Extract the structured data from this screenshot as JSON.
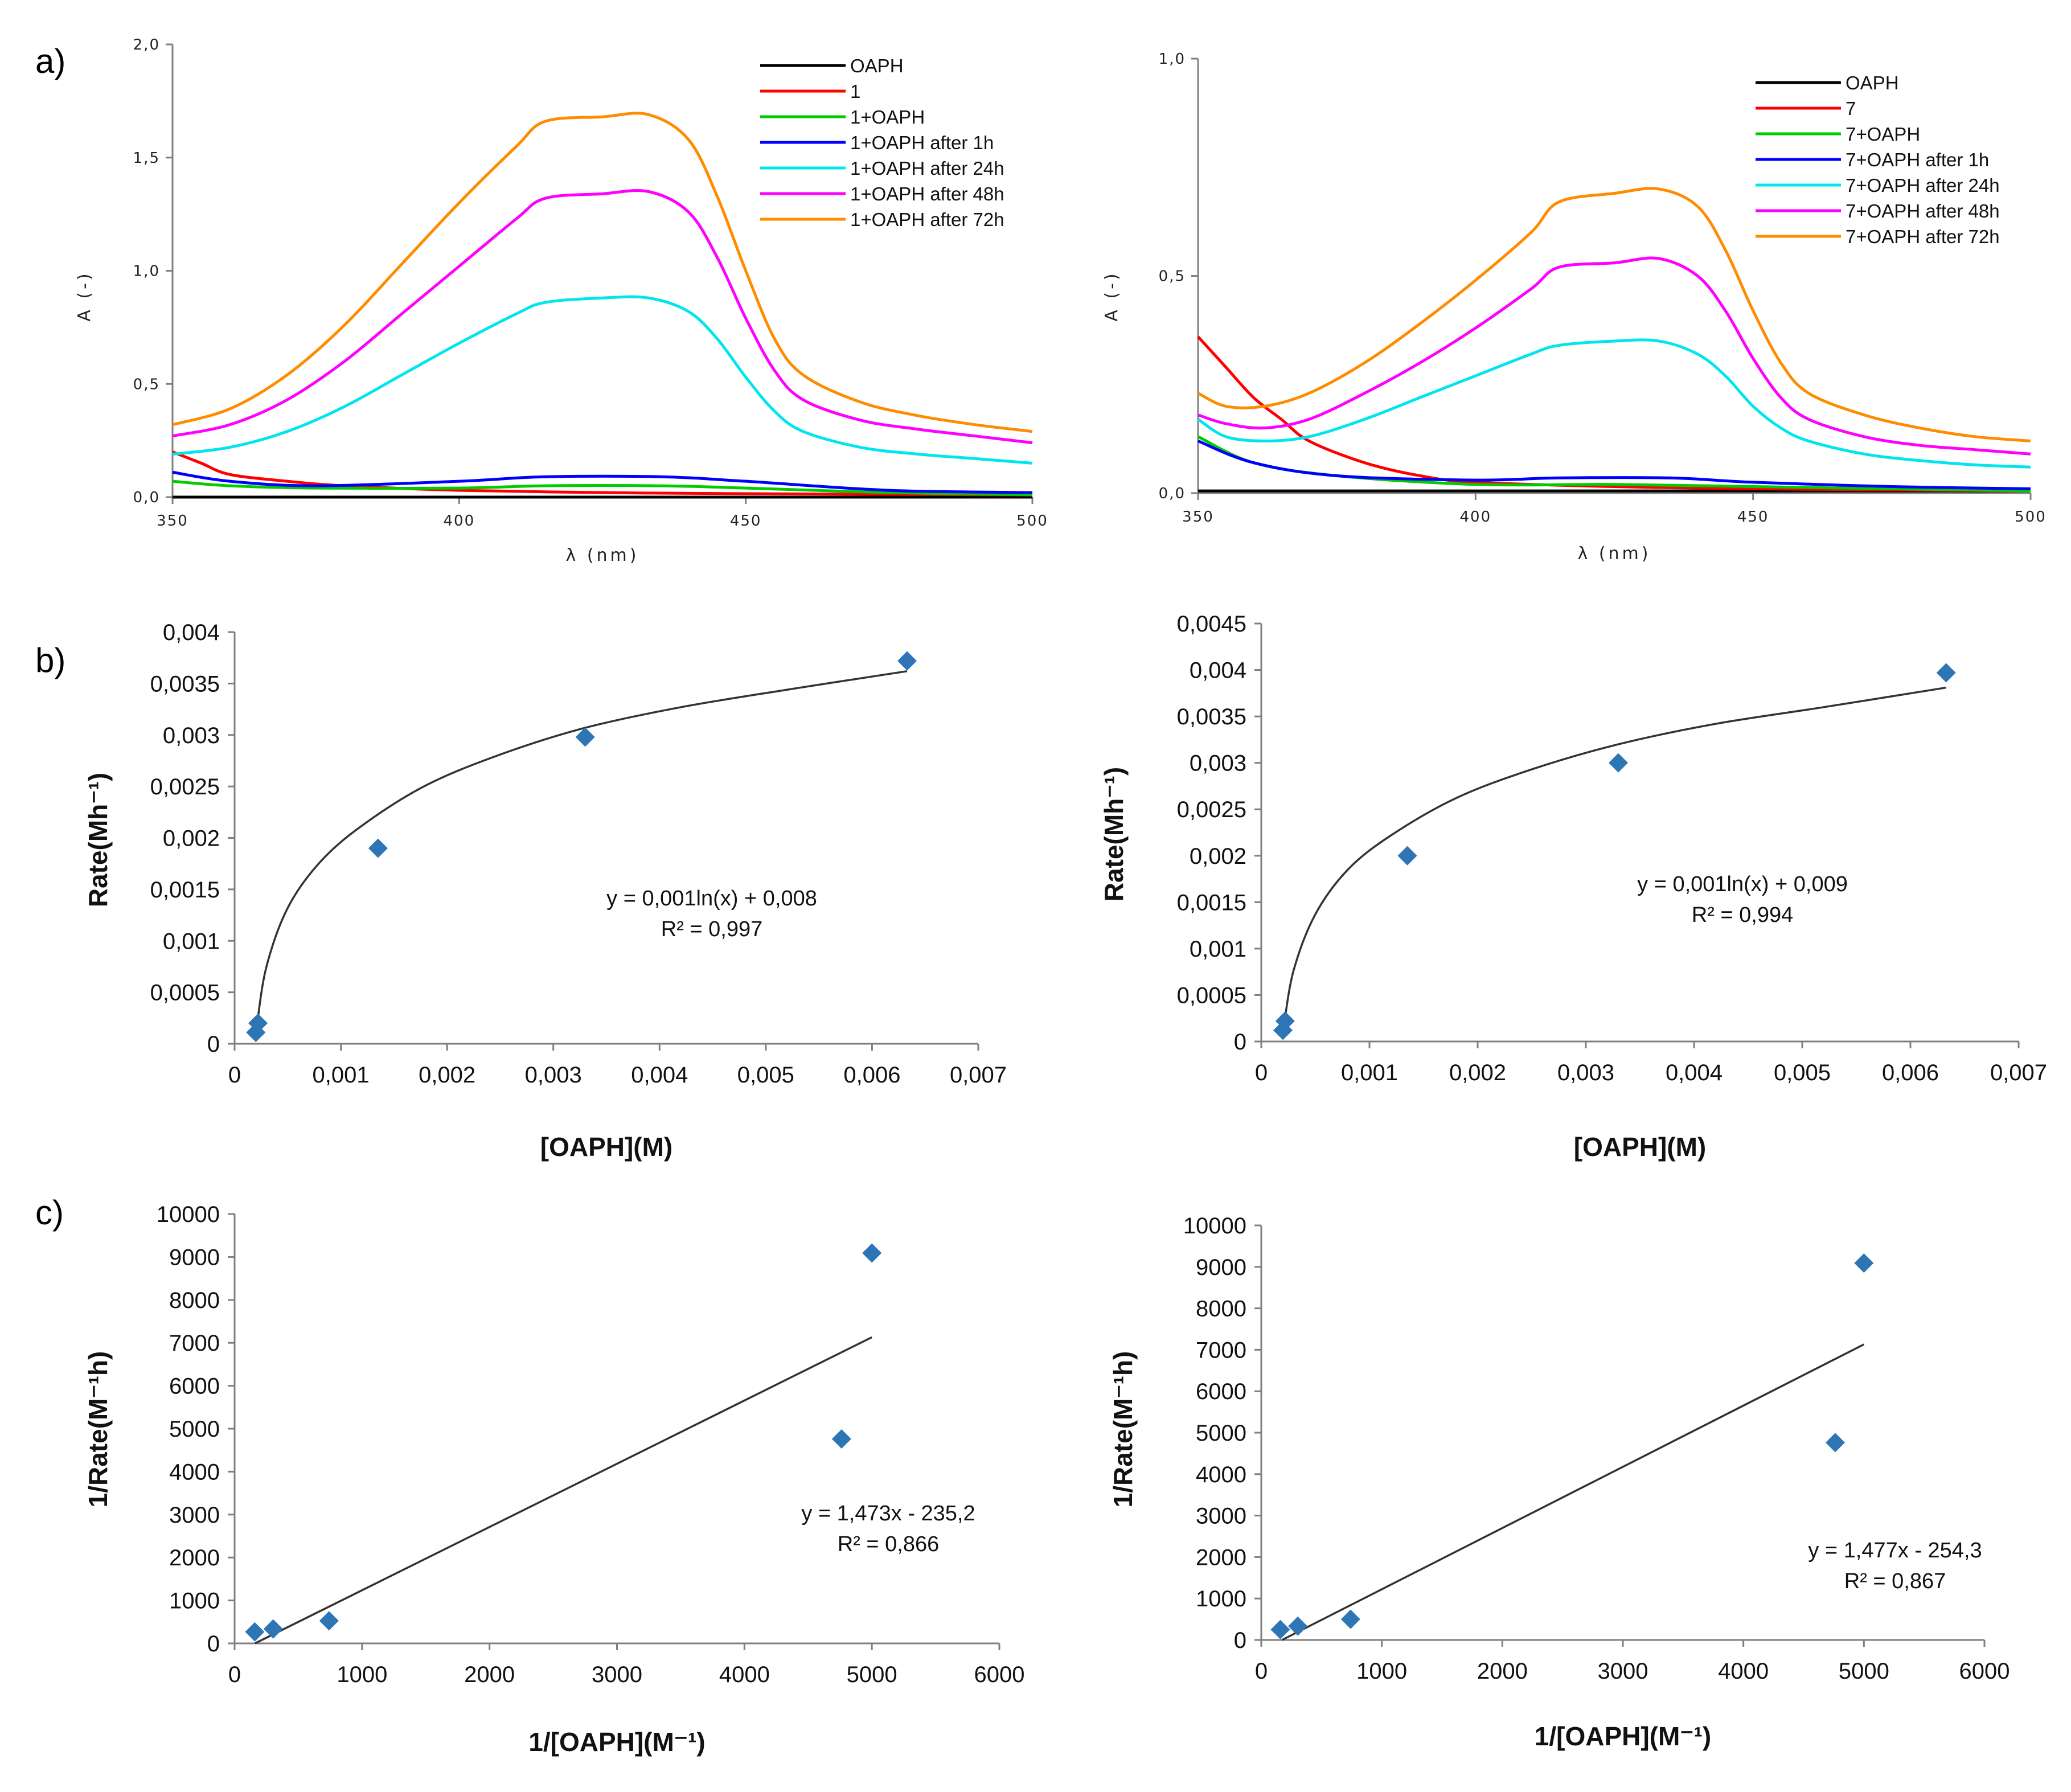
{
  "panel_labels": [
    "a)",
    "b)",
    "c)"
  ],
  "chart_data": [
    {
      "id": "a-left",
      "panel": "a)",
      "type": "line",
      "title": "",
      "xlabel": "λ (nm)",
      "ylabel": "A (-)",
      "xlim": [
        350,
        500
      ],
      "ylim": [
        0,
        2.0
      ],
      "xticks": [
        350,
        400,
        450,
        500
      ],
      "xtick_labels": [
        "350",
        "400",
        "450",
        "500"
      ],
      "yticks": [
        0,
        0.5,
        1.0,
        1.5,
        2.0
      ],
      "ytick_labels": [
        "0,0",
        "0,5",
        "1,0",
        "1,5",
        "2,0"
      ],
      "legend_position": "top-right",
      "series": [
        {
          "name": "OAPH",
          "color": "#000000",
          "x": [
            350,
            375,
            400,
            425,
            450,
            475,
            500
          ],
          "values": [
            0.0,
            0.0,
            0.0,
            0.0,
            0.0,
            0.0,
            0.0
          ]
        },
        {
          "name": "1",
          "color": "#ff0000",
          "x": [
            350,
            355,
            360,
            370,
            380,
            400,
            425,
            450,
            500
          ],
          "values": [
            0.2,
            0.15,
            0.1,
            0.07,
            0.05,
            0.03,
            0.02,
            0.015,
            0.01
          ]
        },
        {
          "name": "1+OAPH",
          "color": "#00cc00",
          "x": [
            350,
            360,
            375,
            400,
            415,
            435,
            450,
            475,
            500
          ],
          "values": [
            0.07,
            0.05,
            0.04,
            0.04,
            0.05,
            0.05,
            0.04,
            0.02,
            0.01
          ]
        },
        {
          "name": "1+OAPH after 1h",
          "color": "#0000ff",
          "x": [
            350,
            360,
            375,
            400,
            415,
            435,
            450,
            475,
            500
          ],
          "values": [
            0.11,
            0.07,
            0.05,
            0.07,
            0.09,
            0.09,
            0.07,
            0.03,
            0.02
          ]
        },
        {
          "name": "1+OAPH after 24h",
          "color": "#00e5ee",
          "x": [
            350,
            360,
            370,
            380,
            390,
            400,
            410,
            415,
            425,
            433,
            440,
            445,
            450,
            455,
            460,
            470,
            480,
            490,
            500
          ],
          "values": [
            0.19,
            0.22,
            0.29,
            0.4,
            0.54,
            0.68,
            0.81,
            0.86,
            0.88,
            0.88,
            0.82,
            0.7,
            0.53,
            0.38,
            0.29,
            0.22,
            0.19,
            0.17,
            0.15
          ]
        },
        {
          "name": "1+OAPH after 48h",
          "color": "#ff00ff",
          "x": [
            350,
            360,
            370,
            380,
            390,
            400,
            410,
            415,
            425,
            433,
            440,
            445,
            450,
            455,
            460,
            470,
            480,
            490,
            500
          ],
          "values": [
            0.27,
            0.32,
            0.43,
            0.6,
            0.81,
            1.02,
            1.23,
            1.32,
            1.34,
            1.35,
            1.26,
            1.06,
            0.79,
            0.56,
            0.43,
            0.34,
            0.3,
            0.27,
            0.24
          ]
        },
        {
          "name": "1+OAPH after 72h",
          "color": "#ff8c00",
          "x": [
            350,
            360,
            370,
            380,
            390,
            400,
            410,
            415,
            425,
            433,
            440,
            445,
            450,
            455,
            460,
            470,
            480,
            490,
            500
          ],
          "values": [
            0.32,
            0.39,
            0.54,
            0.76,
            1.03,
            1.3,
            1.55,
            1.66,
            1.68,
            1.69,
            1.58,
            1.33,
            1.0,
            0.7,
            0.54,
            0.42,
            0.36,
            0.32,
            0.29
          ]
        }
      ]
    },
    {
      "id": "a-right",
      "panel": "a)",
      "type": "line",
      "title": "",
      "xlabel": "λ (nm)",
      "ylabel": "A (-)",
      "xlim": [
        350,
        500
      ],
      "ylim": [
        0,
        1.0
      ],
      "xticks": [
        350,
        400,
        450,
        500
      ],
      "xtick_labels": [
        "350",
        "400",
        "450",
        "500"
      ],
      "yticks": [
        0,
        0.5,
        1.0
      ],
      "ytick_labels": [
        "0,0",
        "0,5",
        "1,0"
      ],
      "legend_position": "top-right",
      "series": [
        {
          "name": "OAPH",
          "color": "#000000",
          "x": [
            350,
            375,
            400,
            425,
            450,
            475,
            500
          ],
          "values": [
            0.005,
            0.005,
            0.005,
            0.005,
            0.005,
            0.005,
            0.005
          ]
        },
        {
          "name": "7",
          "color": "#ff0000",
          "x": [
            350,
            355,
            360,
            365,
            370,
            380,
            390,
            400,
            425,
            450,
            500
          ],
          "values": [
            0.36,
            0.29,
            0.22,
            0.17,
            0.12,
            0.07,
            0.04,
            0.025,
            0.015,
            0.01,
            0.005
          ]
        },
        {
          "name": "7+OAPH",
          "color": "#00cc00",
          "x": [
            350,
            360,
            375,
            400,
            425,
            450,
            475,
            500
          ],
          "values": [
            0.13,
            0.07,
            0.04,
            0.02,
            0.02,
            0.015,
            0.01,
            0.005
          ]
        },
        {
          "name": "7+OAPH after 1h",
          "color": "#0000ff",
          "x": [
            350,
            360,
            375,
            400,
            415,
            435,
            450,
            475,
            500
          ],
          "values": [
            0.12,
            0.07,
            0.04,
            0.03,
            0.035,
            0.035,
            0.025,
            0.015,
            0.01
          ]
        },
        {
          "name": "7+OAPH after 24h",
          "color": "#00e5ee",
          "x": [
            350,
            355,
            362,
            370,
            380,
            390,
            400,
            410,
            415,
            425,
            433,
            440,
            445,
            450,
            455,
            460,
            470,
            480,
            490,
            500
          ],
          "values": [
            0.17,
            0.13,
            0.12,
            0.13,
            0.17,
            0.22,
            0.27,
            0.32,
            0.34,
            0.35,
            0.35,
            0.32,
            0.27,
            0.2,
            0.15,
            0.12,
            0.09,
            0.075,
            0.065,
            0.06
          ]
        },
        {
          "name": "7+OAPH after 48h",
          "color": "#ff00ff",
          "x": [
            350,
            355,
            362,
            370,
            380,
            390,
            400,
            410,
            415,
            425,
            433,
            440,
            445,
            450,
            455,
            460,
            470,
            480,
            490,
            500
          ],
          "values": [
            0.18,
            0.16,
            0.15,
            0.17,
            0.23,
            0.3,
            0.38,
            0.47,
            0.52,
            0.53,
            0.54,
            0.5,
            0.42,
            0.31,
            0.22,
            0.17,
            0.13,
            0.11,
            0.1,
            0.09
          ]
        },
        {
          "name": "7+OAPH after 72h",
          "color": "#ff8c00",
          "x": [
            350,
            355,
            362,
            370,
            380,
            390,
            400,
            410,
            415,
            425,
            433,
            440,
            445,
            450,
            455,
            460,
            470,
            480,
            490,
            500
          ],
          "values": [
            0.23,
            0.2,
            0.2,
            0.23,
            0.3,
            0.39,
            0.49,
            0.6,
            0.67,
            0.69,
            0.7,
            0.66,
            0.56,
            0.42,
            0.3,
            0.23,
            0.18,
            0.15,
            0.13,
            0.12
          ]
        }
      ]
    },
    {
      "id": "b-left",
      "panel": "b)",
      "type": "scatter",
      "title": "",
      "xlabel": "[OAPH](M)",
      "ylabel": "Rate(Mh⁻¹)",
      "xlim": [
        0,
        0.007
      ],
      "ylim": [
        0,
        0.004
      ],
      "xticks": [
        0,
        0.001,
        0.002,
        0.003,
        0.004,
        0.005,
        0.006,
        0.007
      ],
      "xtick_labels": [
        "0",
        "0,001",
        "0,002",
        "0,003",
        "0,004",
        "0,005",
        "0,006",
        "0,007"
      ],
      "yticks": [
        0,
        0.0005,
        0.001,
        0.0015,
        0.002,
        0.0025,
        0.003,
        0.0035,
        0.004
      ],
      "ytick_labels": [
        "0",
        "0,0005",
        "0,001",
        "0,0015",
        "0,002",
        "0,0025",
        "0,003",
        "0,0035",
        "0,004"
      ],
      "points": [
        [
          0.0002,
          0.00011
        ],
        [
          0.00022,
          0.0002
        ],
        [
          0.00135,
          0.0019
        ],
        [
          0.0033,
          0.00298
        ],
        [
          0.00633,
          0.00372
        ]
      ],
      "trendline": {
        "kind": "log",
        "x": [
          0.00021,
          0.0003,
          0.0005,
          0.0008,
          0.0012,
          0.0018,
          0.0025,
          0.0033,
          0.0042,
          0.0052,
          0.00633
        ],
        "values": [
          0.00018,
          0.00075,
          0.00132,
          0.00176,
          0.00212,
          0.00251,
          0.00281,
          0.00307,
          0.00327,
          0.00344,
          0.00362
        ]
      },
      "equation": "y = 0,001ln(x) + 0,008",
      "r_squared": "R² = 0,997"
    },
    {
      "id": "b-right",
      "panel": "b)",
      "type": "scatter",
      "title": "",
      "xlabel": "[OAPH](M)",
      "ylabel": "Rate(Mh⁻¹)",
      "xlim": [
        0,
        0.007
      ],
      "ylim": [
        0,
        0.0045
      ],
      "xticks": [
        0,
        0.001,
        0.002,
        0.003,
        0.004,
        0.005,
        0.006,
        0.007
      ],
      "xtick_labels": [
        "0",
        "0,001",
        "0,002",
        "0,003",
        "0,004",
        "0,005",
        "0,006",
        "0,007"
      ],
      "yticks": [
        0,
        0.0005,
        0.001,
        0.0015,
        0.002,
        0.0025,
        0.003,
        0.0035,
        0.004,
        0.0045
      ],
      "ytick_labels": [
        "0",
        "0,0005",
        "0,001",
        "0,0015",
        "0,002",
        "0,0025",
        "0,003",
        "0,0035",
        "0,004",
        "0,0045"
      ],
      "points": [
        [
          0.0002,
          0.00012
        ],
        [
          0.00022,
          0.00022
        ],
        [
          0.00135,
          0.002
        ],
        [
          0.0033,
          0.003
        ],
        [
          0.00633,
          0.00397
        ]
      ],
      "trendline": {
        "kind": "log",
        "x": [
          0.00021,
          0.0003,
          0.0005,
          0.0008,
          0.0012,
          0.0018,
          0.0025,
          0.0033,
          0.0042,
          0.0052,
          0.00633
        ],
        "values": [
          0.00018,
          0.00077,
          0.00137,
          0.00185,
          0.00222,
          0.00262,
          0.00293,
          0.0032,
          0.00342,
          0.0036,
          0.00381
        ]
      },
      "equation": "y = 0,001ln(x) + 0,009",
      "r_squared": "R² = 0,994"
    },
    {
      "id": "c-left",
      "panel": "c)",
      "type": "scatter",
      "title": "",
      "xlabel": "1/[OAPH](M⁻¹)",
      "ylabel": "1/Rate(M⁻¹h)",
      "xlim": [
        0,
        6000
      ],
      "ylim": [
        0,
        10000
      ],
      "xticks": [
        0,
        1000,
        2000,
        3000,
        4000,
        5000,
        6000
      ],
      "xtick_labels": [
        "0",
        "1000",
        "2000",
        "3000",
        "4000",
        "5000",
        "6000"
      ],
      "yticks": [
        0,
        1000,
        2000,
        3000,
        4000,
        5000,
        6000,
        7000,
        8000,
        9000,
        10000
      ],
      "ytick_labels": [
        "0",
        "1000",
        "2000",
        "3000",
        "4000",
        "5000",
        "6000",
        "7000",
        "8000",
        "9000",
        "10000"
      ],
      "points": [
        [
          158,
          269
        ],
        [
          303,
          336
        ],
        [
          741,
          526
        ],
        [
          4762,
          4762
        ],
        [
          5000,
          9091
        ]
      ],
      "trendline": {
        "kind": "linear",
        "x": [
          160,
          5000
        ],
        "values": [
          0,
          7130
        ]
      },
      "equation": "y = 1,473x - 235,2",
      "r_squared": "R² = 0,866"
    },
    {
      "id": "c-right",
      "panel": "c)",
      "type": "scatter",
      "title": "",
      "xlabel": "1/[OAPH](M⁻¹)",
      "ylabel": "1/Rate(M⁻¹h)",
      "xlim": [
        0,
        6000
      ],
      "ylim": [
        0,
        10000
      ],
      "xticks": [
        0,
        1000,
        2000,
        3000,
        4000,
        5000,
        6000
      ],
      "xtick_labels": [
        "0",
        "1000",
        "2000",
        "3000",
        "4000",
        "5000",
        "6000"
      ],
      "yticks": [
        0,
        1000,
        2000,
        3000,
        4000,
        5000,
        6000,
        7000,
        8000,
        9000,
        10000
      ],
      "ytick_labels": [
        "0",
        "1000",
        "2000",
        "3000",
        "4000",
        "5000",
        "6000",
        "7000",
        "8000",
        "9000",
        "10000"
      ],
      "points": [
        [
          158,
          250
        ],
        [
          303,
          333
        ],
        [
          741,
          500
        ],
        [
          4762,
          4762
        ],
        [
          5000,
          9091
        ]
      ],
      "trendline": {
        "kind": "linear",
        "x": [
          172,
          5000
        ],
        "values": [
          0,
          7130
        ]
      },
      "equation": "y = 1,477x - 254,3",
      "r_squared": "R² = 0,867"
    }
  ]
}
